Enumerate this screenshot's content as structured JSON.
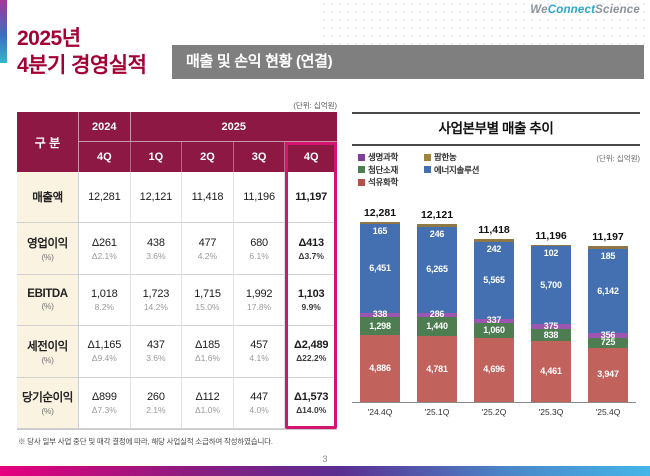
{
  "brand": {
    "logo_we": "We",
    "logo_connect": "Connect",
    "logo_science": "Science",
    "accent_red": "#A50034",
    "highlight_pink": "#D4156F"
  },
  "header": {
    "title_line1": "2025년",
    "title_line2": "4분기 경영실적",
    "section_title": "매출 및 손익 현황 (연결)"
  },
  "table": {
    "unit_label": "(단위: 십억원)",
    "corner_label": "구 분",
    "col_2024": "2024",
    "col_2025": "2025",
    "quarter_headers": [
      "4Q",
      "1Q",
      "2Q",
      "3Q",
      "4Q"
    ],
    "rows": [
      {
        "label": "매출액",
        "sub_label": "",
        "values": [
          "12,281",
          "12,121",
          "11,418",
          "11,196",
          "11,197"
        ],
        "pcts": [
          "",
          "",
          "",
          "",
          ""
        ]
      },
      {
        "label": "영업이익",
        "sub_label": "(%)",
        "values": [
          "Δ261",
          "438",
          "477",
          "680",
          "Δ413"
        ],
        "pcts": [
          "Δ2.1%",
          "3.6%",
          "4.2%",
          "6.1%",
          "Δ3.7%"
        ]
      },
      {
        "label": "EBITDA",
        "sub_label": "(%)",
        "values": [
          "1,018",
          "1,723",
          "1,715",
          "1,992",
          "1,103"
        ],
        "pcts": [
          "8.2%",
          "14.2%",
          "15.0%",
          "17.8%",
          "9.9%"
        ]
      },
      {
        "label": "세전이익",
        "sub_label": "(%)",
        "values": [
          "Δ1,165",
          "437",
          "Δ185",
          "457",
          "Δ2,489"
        ],
        "pcts": [
          "Δ9.4%",
          "3.6%",
          "Δ1.6%",
          "4.1%",
          "Δ22.2%"
        ]
      },
      {
        "label": "당기순이익",
        "sub_label": "(%)",
        "values": [
          "Δ899",
          "260",
          "Δ112",
          "447",
          "Δ1,573"
        ],
        "pcts": [
          "Δ7.3%",
          "2.1%",
          "Δ1.0%",
          "4.0%",
          "Δ14.0%"
        ]
      }
    ]
  },
  "chart_data": {
    "type": "bar",
    "stacked": true,
    "title": "사업본부별 매출 추이",
    "unit_label": "(단위: 십억원)",
    "categories": [
      "'24.4Q",
      "'25.1Q",
      "'25.2Q",
      "'25.3Q",
      "'25.4Q"
    ],
    "totals": [
      12281,
      12121,
      11418,
      11196,
      11197
    ],
    "total_labels": [
      "12,281",
      "12,121",
      "11,418",
      "11,196",
      "11,197"
    ],
    "series": [
      {
        "name": "석유화학",
        "color": "#c2625c",
        "values": [
          4886,
          4781,
          4696,
          4461,
          3947
        ],
        "labels": [
          "4,886",
          "4,781",
          "4,696",
          "4,461",
          "3,947"
        ]
      },
      {
        "name": "첨단소재",
        "color": "#4e7d52",
        "values": [
          1298,
          1440,
          1060,
          838,
          725
        ],
        "labels": [
          "1,298",
          "1,440",
          "1,060",
          "838",
          "725"
        ]
      },
      {
        "name": "생명과학",
        "color": "#9c55b0",
        "values": [
          338,
          286,
          337,
          375,
          356
        ],
        "labels": [
          "338",
          "286",
          "337",
          "375",
          "356"
        ]
      },
      {
        "name": "에너지솔루션",
        "color": "#4470b2",
        "values": [
          6451,
          6265,
          5565,
          5700,
          6142
        ],
        "labels": [
          "6,451",
          "6,265",
          "5,565",
          "5,700",
          "6,142"
        ]
      },
      {
        "name": "팜한농",
        "color": "#8e7845",
        "values": [
          165,
          246,
          242,
          102,
          185
        ],
        "labels": [
          "165",
          "246",
          "242",
          "102",
          "185"
        ]
      }
    ],
    "legend": [
      {
        "name": "생명과학",
        "color": "#7c4098",
        "col": 0,
        "row": 0
      },
      {
        "name": "팜한농",
        "color": "#9c8440",
        "col": 1,
        "row": 0
      },
      {
        "name": "첨단소재",
        "color": "#4e7d52",
        "col": 0,
        "row": 1
      },
      {
        "name": "에너지솔루션",
        "color": "#4470b2",
        "col": 1,
        "row": 1
      },
      {
        "name": "석유화학",
        "color": "#b5514d",
        "col": 0,
        "row": 2
      }
    ],
    "legend_position": "top-left",
    "grid": false
  },
  "footer": {
    "footnote": "※ 당사 일부 사업 중단 및 매각 결정에 따라, 해당 사업실적 소급하여 작성하였습니다.",
    "page_number": "3"
  }
}
